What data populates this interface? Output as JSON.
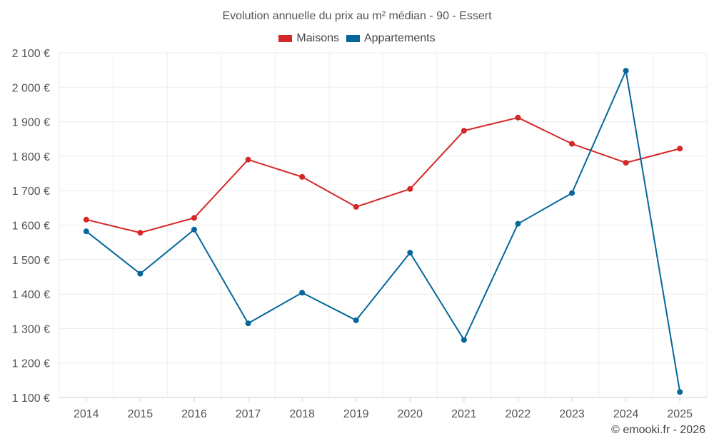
{
  "chart_data": {
    "type": "line",
    "title": "Evolution annuelle du prix au m² médian - 90 - Essert",
    "categories": [
      "2014",
      "2015",
      "2016",
      "2017",
      "2018",
      "2019",
      "2020",
      "2021",
      "2022",
      "2023",
      "2024",
      "2025"
    ],
    "ylim": [
      1100,
      2100
    ],
    "yticks": [
      1100,
      1200,
      1300,
      1400,
      1500,
      1600,
      1700,
      1800,
      1900,
      2000,
      2100
    ],
    "ytick_labels": [
      "1 100 €",
      "1 200 €",
      "1 300 €",
      "1 400 €",
      "1 500 €",
      "1 600 €",
      "1 700 €",
      "1 800 €",
      "1 900 €",
      "2 000 €",
      "2 100 €"
    ],
    "grid": true,
    "legend_position": "top-center",
    "series": [
      {
        "name": "Maisons",
        "color": "#d62728",
        "values": [
          1616,
          1578,
          1621,
          1790,
          1740,
          1653,
          1705,
          1874,
          1912,
          1836,
          1781,
          1822
        ]
      },
      {
        "name": "Appartements",
        "color": "#05679a",
        "values": [
          1582,
          1459,
          1587,
          1315,
          1404,
          1324,
          1520,
          1267,
          1604,
          1693,
          2048,
          1116
        ]
      }
    ]
  },
  "credit": "© emooki.fr - 2026"
}
